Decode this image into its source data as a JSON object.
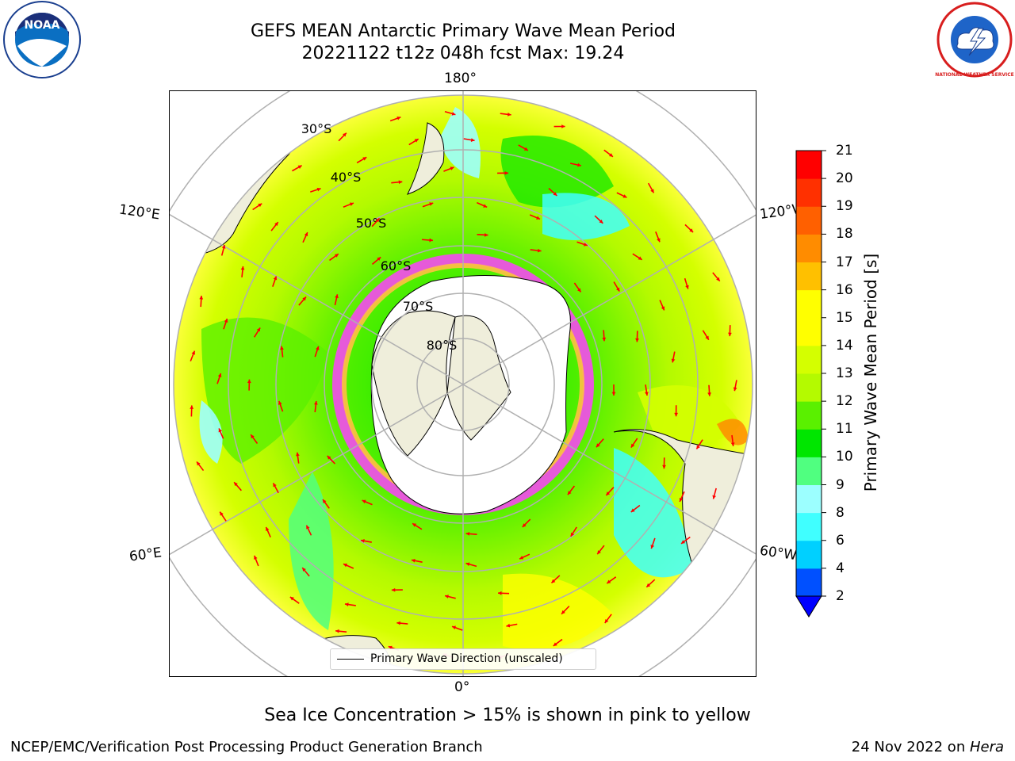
{
  "header": {
    "title_line1": "GEFS MEAN Antarctic Primary Wave Mean Period",
    "title_line2": "20221122 t12z 048h fcst   Max: 19.24"
  },
  "logos": {
    "left": "noaa-logo",
    "right": "nws-logo",
    "left_text": "NOAA",
    "right_text": "NATIONAL WEATHER SERVICE"
  },
  "map": {
    "projection": "south-polar-stereographic",
    "longitude_labels": [
      "180°",
      "120°E",
      "120°W",
      "60°E",
      "60°W",
      "0°"
    ],
    "latitude_labels": [
      "30°S",
      "40°S",
      "50°S",
      "60°S",
      "70°S",
      "80°S"
    ],
    "legend_label": "Primary Wave Direction (unscaled)",
    "arrow_color": "#ff0000"
  },
  "colorbar": {
    "label": "Primary Wave Mean Period [s]",
    "ticks": [
      "2",
      "4",
      "6",
      "8",
      "9",
      "10",
      "11",
      "12",
      "13",
      "14",
      "15",
      "16",
      "17",
      "18",
      "19",
      "20",
      "21"
    ],
    "colors": [
      "#0050ff",
      "#00d0ff",
      "#40ffff",
      "#9cffff",
      "#50ff80",
      "#00e600",
      "#5af000",
      "#b4fa00",
      "#d4ff00",
      "#ffff00",
      "#ffff00",
      "#ffc000",
      "#ff8c00",
      "#ff6000",
      "#ff3000",
      "#ff0000"
    ],
    "extend": "min"
  },
  "footer": {
    "caption": "Sea Ice Concentration > 15% is shown in pink to yellow",
    "left": "NCEP/EMC/Verification Post Processing Product Generation Branch",
    "right_date": "24 Nov 2022 on ",
    "right_host": "Hera"
  }
}
